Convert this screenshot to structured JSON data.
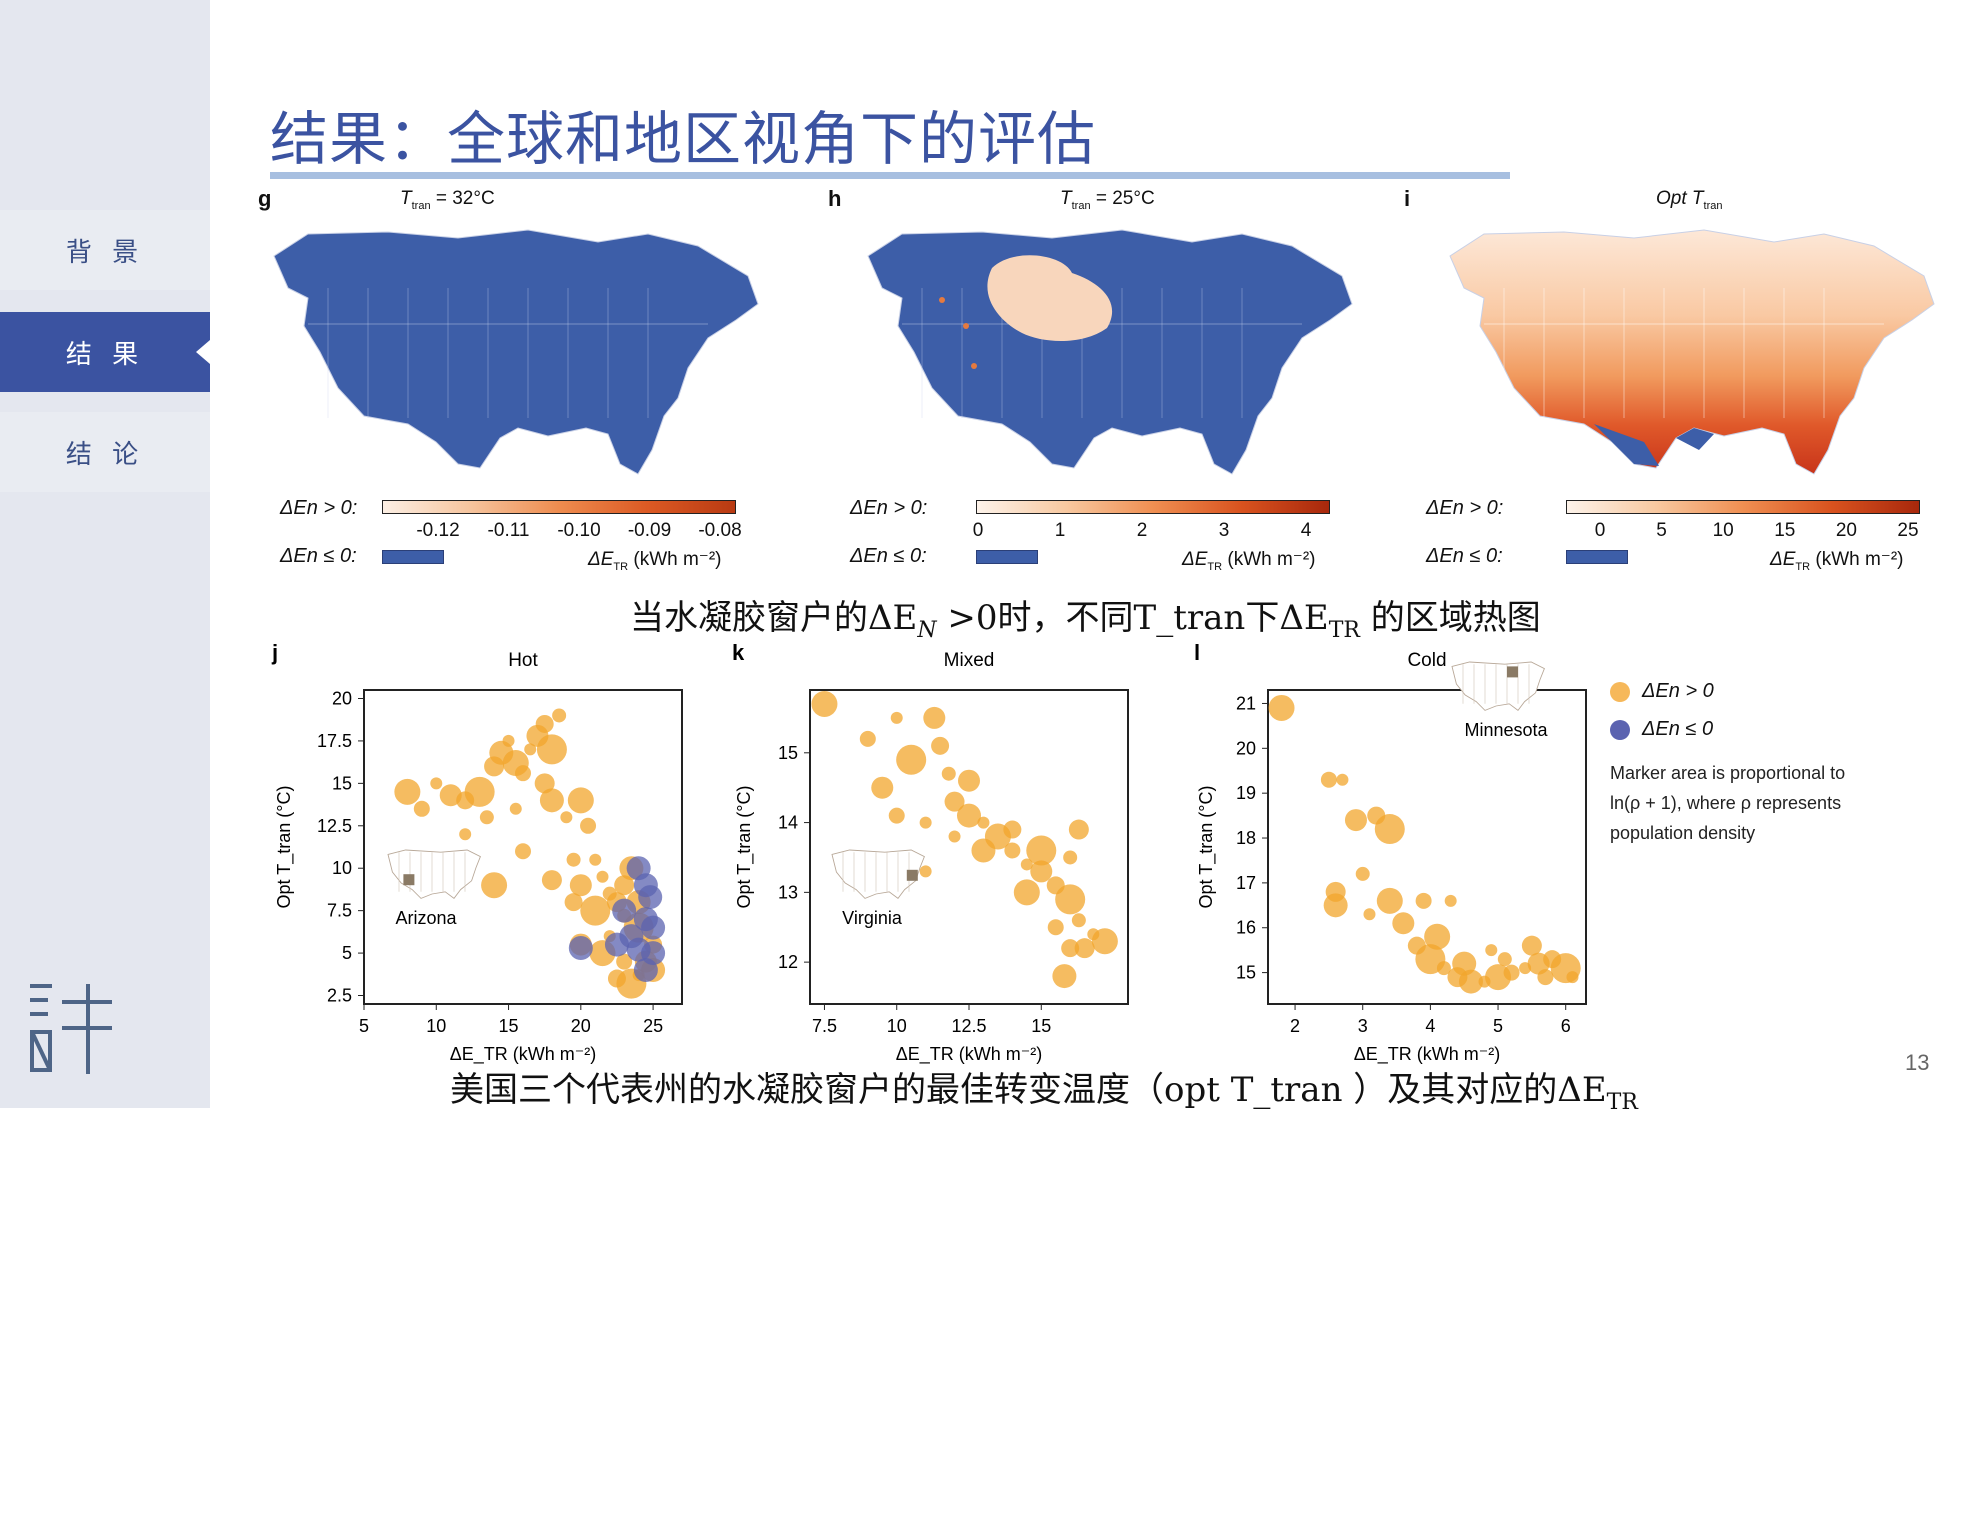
{
  "sidebar": {
    "items": [
      {
        "label": "背 景"
      },
      {
        "label": "结 果"
      },
      {
        "label": "结 论"
      }
    ],
    "logo_glyph": "許"
  },
  "title": "结果：全球和地区视角下的评估",
  "maps": [
    {
      "letter": "g",
      "title": "T",
      "title_sub": "tran",
      "title_suffix": " = 32°C",
      "legend_pos": "ΔEn > 0:",
      "legend_neg": "ΔEn ≤ 0:",
      "ticks": [
        "-0.12",
        "-0.11",
        "-0.10",
        "-0.09",
        "-0.08"
      ],
      "unit": "ΔE",
      "unit_sub": "TR",
      "unit_suffix": " (kWh m⁻²)"
    },
    {
      "letter": "h",
      "title": "T",
      "title_sub": "tran",
      "title_suffix": " = 25°C",
      "legend_pos": "ΔEn > 0:",
      "legend_neg": "ΔEn ≤ 0:",
      "ticks": [
        "0",
        "1",
        "2",
        "3",
        "4"
      ],
      "unit": "ΔE",
      "unit_sub": "TR",
      "unit_suffix": " (kWh m⁻²)"
    },
    {
      "letter": "i",
      "title": "Opt T",
      "title_sub": "tran",
      "title_suffix": "",
      "legend_pos": "ΔEn > 0:",
      "legend_neg": "ΔEn ≤ 0:",
      "ticks": [
        "0",
        "5",
        "10",
        "15",
        "20",
        "25"
      ],
      "unit": "ΔE",
      "unit_sub": "TR",
      "unit_suffix": " (kWh m⁻²)"
    }
  ],
  "caption1": {
    "pre": "当水凝胶窗户的ΔE",
    "sub": "N",
    "post": " >0时，不同T_tran下ΔE",
    "sub2": "TR",
    "post2": " 的区域热图"
  },
  "caption2": {
    "pre": "美国三个代表州的水凝胶窗户的最佳转变温度（opt T_tran ）及其对应的ΔE",
    "sub": "TR"
  },
  "scatter_legend": {
    "pos": "ΔEn > 0",
    "neg": "ΔEn ≤ 0",
    "note_lines": [
      "Marker area is proportional to",
      "ln(ρ + 1), where ρ represents",
      "population density"
    ]
  },
  "colors": {
    "pos": "#f2a52c",
    "neg": "#5b63b0",
    "accent": "#3b53a1",
    "map_blue": "#3d5ea8"
  },
  "page_number": "13",
  "chart_data": [
    {
      "type": "scatter",
      "letter": "j",
      "title": "Hot",
      "state": "Arizona",
      "xlabel": "ΔE_TR (kWh m⁻²)",
      "ylabel": "Opt T_tran (°C)",
      "xlim": [
        5,
        27
      ],
      "ylim": [
        2,
        20.5
      ],
      "xticks": [
        5,
        10,
        15,
        20,
        25
      ],
      "xtick_labels": [
        "5",
        "10",
        "15",
        "20",
        "25"
      ],
      "yticks": [
        2.5,
        5,
        7.5,
        10,
        12.5,
        15,
        17.5,
        20
      ],
      "ytick_labels": [
        "2.5",
        "5",
        "7.5",
        "10",
        "12.5",
        "15",
        "17.5",
        "20"
      ],
      "series": [
        {
          "name": "ΔEn > 0",
          "points": [
            [
              8,
              14.5
            ],
            [
              9,
              13.5
            ],
            [
              10,
              15
            ],
            [
              11,
              14.3
            ],
            [
              12,
              14
            ],
            [
              13,
              14.5
            ],
            [
              13.5,
              13
            ],
            [
              14,
              16
            ],
            [
              14.5,
              16.8
            ],
            [
              15,
              17.5
            ],
            [
              15.5,
              16.2
            ],
            [
              16,
              15.6
            ],
            [
              16.5,
              17
            ],
            [
              17,
              17.8
            ],
            [
              17.5,
              18.5
            ],
            [
              18,
              17
            ],
            [
              18.5,
              19
            ],
            [
              17.5,
              15
            ],
            [
              18,
              14
            ],
            [
              19,
              13
            ],
            [
              20,
              14
            ],
            [
              20.5,
              12.5
            ],
            [
              21,
              10.5
            ],
            [
              20,
              9
            ],
            [
              19.5,
              8
            ],
            [
              21,
              7.5
            ],
            [
              22,
              8.5
            ],
            [
              23,
              9
            ],
            [
              23.5,
              10
            ],
            [
              22,
              6
            ],
            [
              21.5,
              5
            ],
            [
              23,
              4.5
            ],
            [
              24,
              3.7
            ],
            [
              24.5,
              4.5
            ],
            [
              25,
              5.5
            ],
            [
              24,
              6.5
            ],
            [
              23,
              7.2
            ],
            [
              22.5,
              8
            ],
            [
              24,
              8
            ],
            [
              12,
              12
            ],
            [
              14,
              9
            ],
            [
              16,
              11
            ],
            [
              15.5,
              13.5
            ],
            [
              20,
              5.5
            ],
            [
              22.5,
              3.5
            ],
            [
              23.5,
              3.2
            ],
            [
              19.5,
              10.5
            ],
            [
              18,
              9.3
            ],
            [
              25,
              4
            ],
            [
              21.5,
              9.5
            ]
          ]
        },
        {
          "name": "ΔEn ≤ 0",
          "points": [
            [
              24.5,
              9
            ],
            [
              24.5,
              7
            ],
            [
              25,
              6.5
            ],
            [
              24,
              5.2
            ],
            [
              23.5,
              6
            ],
            [
              24.5,
              4
            ],
            [
              25,
              5
            ],
            [
              22.5,
              5.5
            ],
            [
              20,
              5.3
            ],
            [
              23,
              7.5
            ],
            [
              24,
              10
            ],
            [
              24.8,
              8.3
            ]
          ]
        }
      ]
    },
    {
      "type": "scatter",
      "letter": "k",
      "title": "Mixed",
      "state": "Virginia",
      "xlabel": "ΔE_TR (kWh m⁻²)",
      "ylabel": "Opt T_tran (°C)",
      "xlim": [
        7,
        18
      ],
      "ylim": [
        11.4,
        15.9
      ],
      "xticks": [
        7.5,
        10,
        12.5,
        15
      ],
      "xtick_labels": [
        "7.5",
        "10",
        "12.5",
        "15"
      ],
      "yticks": [
        12,
        13,
        14,
        15
      ],
      "ytick_labels": [
        "12",
        "13",
        "14",
        "15"
      ],
      "series": [
        {
          "name": "ΔEn > 0",
          "points": [
            [
              7.5,
              15.7
            ],
            [
              9,
              15.2
            ],
            [
              10,
              15.5
            ],
            [
              11.3,
              15.5
            ],
            [
              11.5,
              15.1
            ],
            [
              10.5,
              14.9
            ],
            [
              11.8,
              14.7
            ],
            [
              12,
              14.3
            ],
            [
              12.5,
              14.1
            ],
            [
              13,
              14
            ],
            [
              13.5,
              13.8
            ],
            [
              14,
              13.6
            ],
            [
              14.5,
              13.4
            ],
            [
              15,
              13.3
            ],
            [
              15.5,
              13.1
            ],
            [
              16,
              12.9
            ],
            [
              16.3,
              12.6
            ],
            [
              16.5,
              12.2
            ],
            [
              15.8,
              11.8
            ],
            [
              16.8,
              12.4
            ],
            [
              17.2,
              12.3
            ],
            [
              10,
              14.1
            ],
            [
              11,
              14
            ],
            [
              12.5,
              14.6
            ],
            [
              14,
              13.9
            ],
            [
              15,
              13.6
            ],
            [
              16,
              13.5
            ],
            [
              16.3,
              13.9
            ],
            [
              13,
              13.6
            ],
            [
              12,
              13.8
            ],
            [
              14.5,
              13
            ],
            [
              15.5,
              12.5
            ],
            [
              11,
              13.3
            ],
            [
              9.5,
              14.5
            ],
            [
              16,
              12.2
            ]
          ]
        }
      ]
    },
    {
      "type": "scatter",
      "letter": "l",
      "title": "Cold",
      "state": "Minnesota",
      "xlabel": "ΔE_TR (kWh m⁻²)",
      "ylabel": "Opt T_tran (°C)",
      "xlim": [
        1.6,
        6.3
      ],
      "ylim": [
        14.3,
        21.3
      ],
      "xticks": [
        2,
        3,
        4,
        5,
        6
      ],
      "xtick_labels": [
        "2",
        "3",
        "4",
        "5",
        "6"
      ],
      "yticks": [
        15,
        16,
        17,
        18,
        19,
        20,
        21
      ],
      "ytick_labels": [
        "15",
        "16",
        "17",
        "18",
        "19",
        "20",
        "21"
      ],
      "series": [
        {
          "name": "ΔEn > 0",
          "points": [
            [
              1.8,
              20.9
            ],
            [
              2.5,
              19.3
            ],
            [
              2.7,
              19.3
            ],
            [
              2.9,
              18.4
            ],
            [
              3.2,
              18.5
            ],
            [
              3.4,
              18.2
            ],
            [
              3.0,
              17.2
            ],
            [
              2.6,
              16.8
            ],
            [
              2.6,
              16.5
            ],
            [
              3.1,
              16.3
            ],
            [
              3.4,
              16.6
            ],
            [
              3.9,
              16.6
            ],
            [
              4.3,
              16.6
            ],
            [
              3.6,
              16.1
            ],
            [
              3.8,
              15.6
            ],
            [
              4.0,
              15.3
            ],
            [
              4.2,
              15.1
            ],
            [
              4.4,
              14.9
            ],
            [
              4.6,
              14.8
            ],
            [
              4.8,
              14.8
            ],
            [
              5.0,
              14.9
            ],
            [
              5.2,
              15.0
            ],
            [
              5.4,
              15.1
            ],
            [
              5.6,
              15.2
            ],
            [
              5.8,
              15.3
            ],
            [
              6.0,
              15.1
            ],
            [
              5.1,
              15.3
            ],
            [
              5.5,
              15.6
            ],
            [
              4.5,
              15.2
            ],
            [
              4.9,
              15.5
            ],
            [
              4.1,
              15.8
            ],
            [
              5.7,
              14.9
            ],
            [
              6.1,
              14.9
            ]
          ]
        }
      ]
    }
  ]
}
